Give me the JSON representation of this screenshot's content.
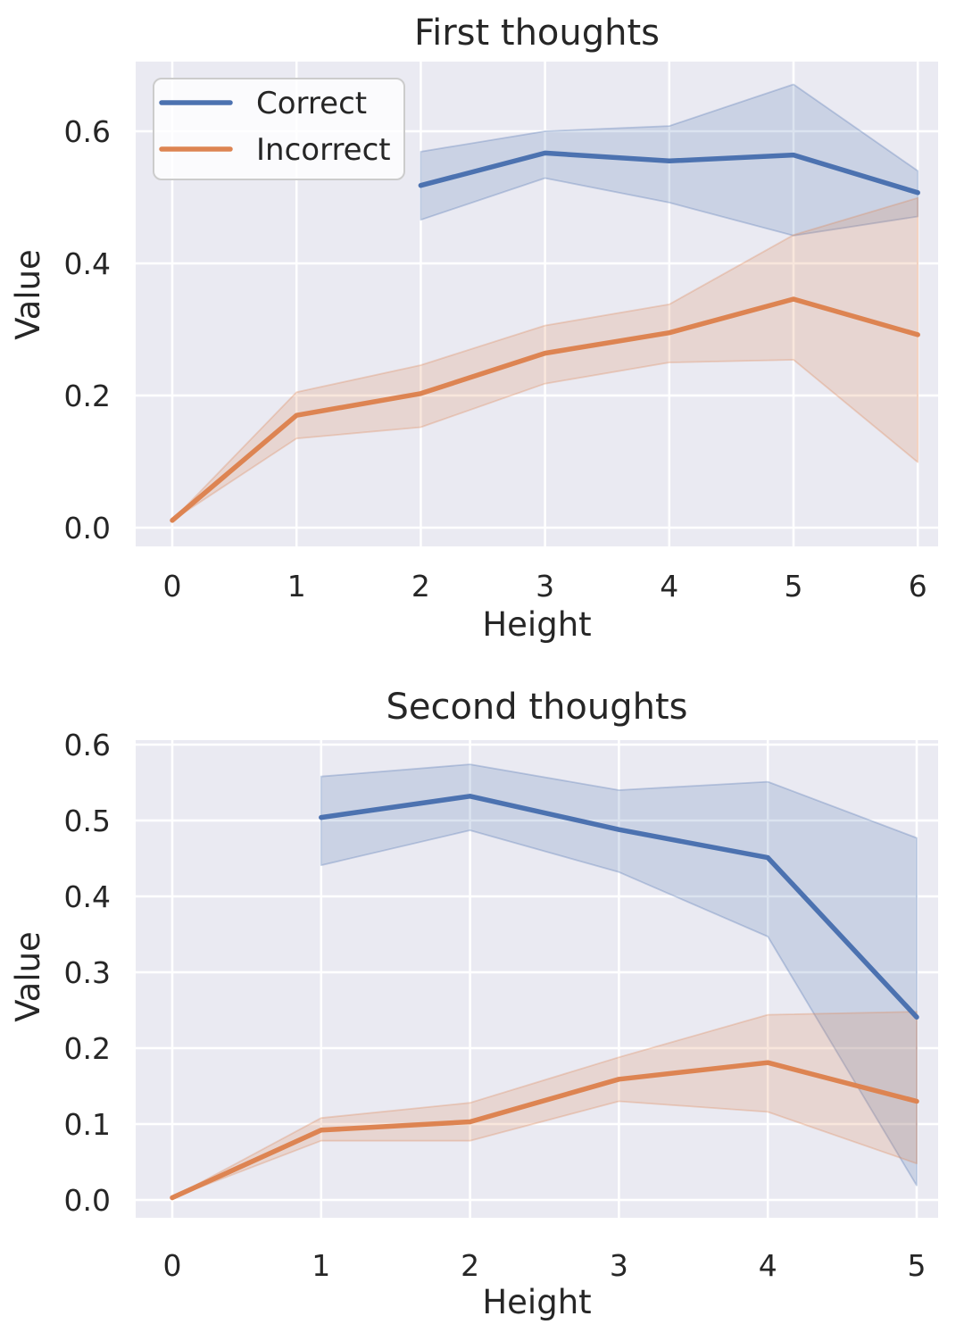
{
  "figure": {
    "kind": "seaborn-line-figure",
    "background": "#ffffff",
    "panels": 2
  },
  "style": {
    "axes_background": "#eaeaf2",
    "grid_color": "#ffffff",
    "text_color": "#262626",
    "legend_border": "#cccccc",
    "legend_fill": "#ffffff",
    "blue": "#4c72b0",
    "orange": "#dd8452",
    "band_alpha": 0.2
  },
  "chart_data": [
    {
      "type": "line",
      "title": "First thoughts",
      "xlabel": "Height",
      "ylabel": "Value",
      "x_ticks": [
        0,
        1,
        2,
        3,
        4,
        5,
        6
      ],
      "x_tick_labels": [
        "0",
        "1",
        "2",
        "3",
        "4",
        "5",
        "6"
      ],
      "y_ticks": [
        0.0,
        0.2,
        0.4,
        0.6
      ],
      "y_tick_labels": [
        "0.0",
        "0.2",
        "0.4",
        "0.6"
      ],
      "xlim": [
        -0.3,
        6.17
      ],
      "ylim": [
        -0.028,
        0.705
      ],
      "grid": true,
      "legend": {
        "visible": true,
        "position": "upper left",
        "entries": [
          "Correct",
          "Incorrect"
        ]
      },
      "series": [
        {
          "name": "Correct",
          "color": "#4c72b0",
          "x": [
            2,
            3,
            4,
            5,
            6
          ],
          "y": [
            0.518,
            0.567,
            0.555,
            0.564,
            0.507
          ],
          "band_lower": [
            0.466,
            0.529,
            0.492,
            0.442,
            0.471
          ],
          "band_upper": [
            0.569,
            0.6,
            0.608,
            0.671,
            0.54
          ]
        },
        {
          "name": "Incorrect",
          "color": "#dd8452",
          "x": [
            0,
            1,
            2,
            3,
            4,
            5,
            6
          ],
          "y": [
            0.011,
            0.17,
            0.203,
            0.264,
            0.295,
            0.346,
            0.292
          ],
          "band_lower": [
            0.011,
            0.135,
            0.152,
            0.218,
            0.25,
            0.254,
            0.099
          ],
          "band_upper": [
            0.011,
            0.205,
            0.246,
            0.306,
            0.338,
            0.443,
            0.499
          ]
        }
      ]
    },
    {
      "type": "line",
      "title": "Second thoughts",
      "xlabel": "Height",
      "ylabel": "Value",
      "x_ticks": [
        0,
        1,
        2,
        3,
        4,
        5
      ],
      "x_tick_labels": [
        "0",
        "1",
        "2",
        "3",
        "4",
        "5"
      ],
      "y_ticks": [
        0.0,
        0.1,
        0.2,
        0.3,
        0.4,
        0.5,
        0.6
      ],
      "y_tick_labels": [
        "0.0",
        "0.1",
        "0.2",
        "0.3",
        "0.4",
        "0.5",
        "0.6"
      ],
      "xlim": [
        -0.25,
        5.14
      ],
      "ylim": [
        -0.026,
        0.604
      ],
      "grid": true,
      "legend": {
        "visible": false,
        "position": null,
        "entries": []
      },
      "series": [
        {
          "name": "Correct",
          "color": "#4c72b0",
          "x": [
            1,
            2,
            3,
            4,
            5
          ],
          "y": [
            0.504,
            0.532,
            0.488,
            0.451,
            0.241
          ],
          "band_lower": [
            0.441,
            0.487,
            0.432,
            0.347,
            0.019
          ],
          "band_upper": [
            0.558,
            0.574,
            0.54,
            0.551,
            0.477
          ]
        },
        {
          "name": "Incorrect",
          "color": "#dd8452",
          "x": [
            0,
            1,
            2,
            3,
            4,
            5
          ],
          "y": [
            0.003,
            0.092,
            0.103,
            0.159,
            0.181,
            0.13
          ],
          "band_lower": [
            0.003,
            0.078,
            0.078,
            0.13,
            0.116,
            0.048
          ],
          "band_upper": [
            0.003,
            0.108,
            0.128,
            0.188,
            0.244,
            0.248
          ]
        }
      ]
    }
  ]
}
